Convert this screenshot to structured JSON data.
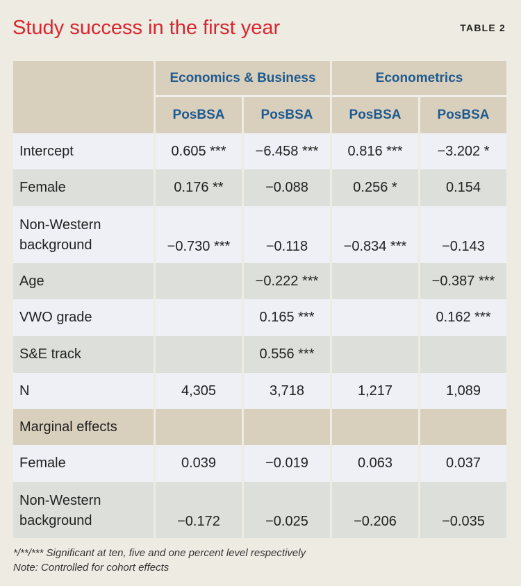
{
  "title": "Study success in the first year",
  "table_label": "TABLE 2",
  "headers": {
    "group1": "Economics & Business",
    "group2": "Econometrics",
    "cols": [
      "PosBSA",
      "PosBSA",
      "PosBSA",
      "PosBSA"
    ]
  },
  "rows": [
    {
      "label": "Intercept",
      "values": [
        "0.605 ***",
        "−6.458 ***",
        "0.816 ***",
        "−3.202 *"
      ]
    },
    {
      "label": "Female",
      "values": [
        "0.176 **",
        "−0.088",
        "0.256 *",
        "0.154"
      ]
    },
    {
      "label": "Non-Western background",
      "values": [
        "−0.730 ***",
        "−0.118",
        "−0.834 ***",
        "−0.143"
      ]
    },
    {
      "label": "Age",
      "values": [
        "",
        "−0.222 ***",
        "",
        "−0.387 ***"
      ]
    },
    {
      "label": "VWO grade",
      "values": [
        "",
        "0.165 ***",
        "",
        "0.162 ***"
      ]
    },
    {
      "label": "S&E track",
      "values": [
        "",
        "0.556 ***",
        "",
        ""
      ]
    },
    {
      "label": "N",
      "values": [
        "4,305",
        "3,718",
        "1,217",
        "1,089"
      ]
    },
    {
      "label": "Marginal effects",
      "values": [
        "",
        "",
        "",
        ""
      ]
    },
    {
      "label": "Female",
      "values": [
        "0.039",
        "−0.019",
        "0.063",
        "0.037"
      ]
    },
    {
      "label": "Non-Western background",
      "values": [
        "−0.172",
        "−0.025",
        "−0.206",
        "−0.035"
      ]
    }
  ],
  "footnotes": [
    "*/**/*** Significant at ten, five and one percent level respectively",
    "Note: Controlled for cohort effects"
  ]
}
